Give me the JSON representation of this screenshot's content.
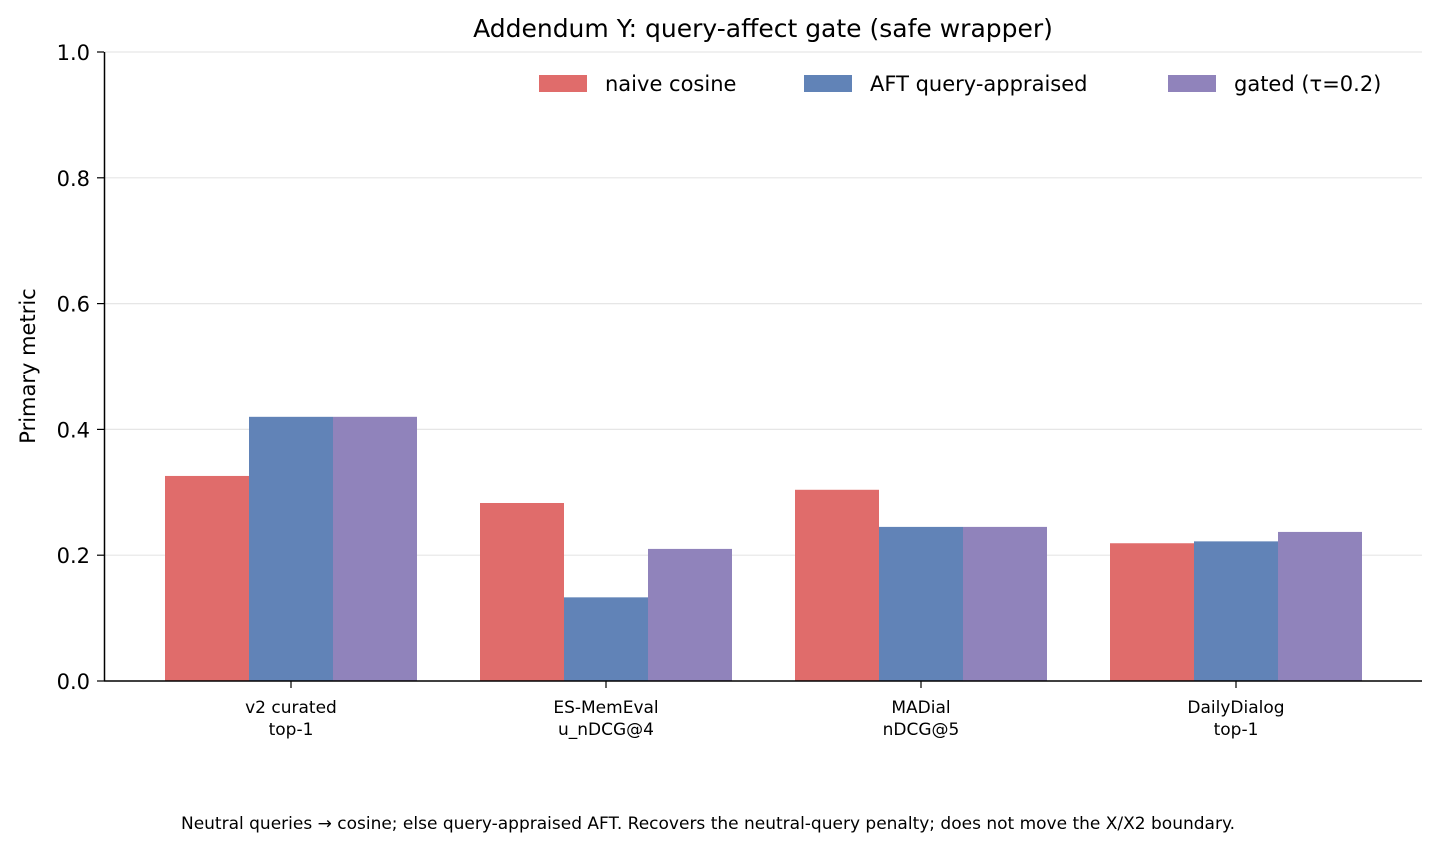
{
  "chart_data": {
    "type": "bar",
    "title": "Addendum Y: query-affect gate (safe wrapper)",
    "xlabel": "",
    "ylabel": "Primary metric",
    "ylim": [
      0,
      1.0
    ],
    "yticks": [
      "0.0",
      "0.2",
      "0.4",
      "0.6",
      "0.8",
      "1.0"
    ],
    "grid": "horizontal",
    "legend_position": "top-right",
    "categories": [
      {
        "line1": "v2 curated",
        "line2": "top-1"
      },
      {
        "line1": "ES-MemEval",
        "line2": "u_nDCG@4"
      },
      {
        "line1": "MADial",
        "line2": "nDCG@5"
      },
      {
        "line1": "DailyDialog",
        "line2": "top-1"
      }
    ],
    "series": [
      {
        "name": "naive cosine",
        "color": "#e06c6b",
        "values": [
          0.326,
          0.283,
          0.304,
          0.219
        ]
      },
      {
        "name": "AFT query-appraised",
        "color": "#6183b7",
        "values": [
          0.42,
          0.133,
          0.245,
          0.222
        ]
      },
      {
        "name": "gated (τ=0.2)",
        "color": "#9083bb",
        "values": [
          0.42,
          0.21,
          0.245,
          0.237
        ]
      }
    ]
  },
  "footnote": "Neutral queries → cosine; else query-appraised AFT. Recovers the neutral-query penalty; does not move the X/X2 boundary."
}
